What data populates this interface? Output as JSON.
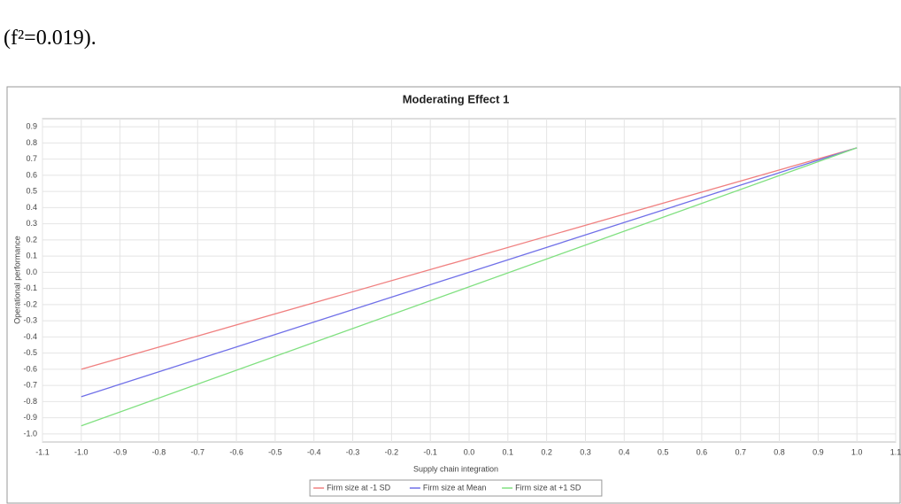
{
  "document": {
    "text": "(f²=0.019)."
  },
  "chart_data": {
    "type": "line",
    "title": "Moderating Effect 1",
    "x_label": "Supply chain integration",
    "y_label": "Operational performance",
    "x": [
      -1,
      1
    ],
    "series": [
      {
        "name": "Firm size at -1 SD",
        "color": "#f08080",
        "values": [
          -0.6,
          0.77
        ]
      },
      {
        "name": "Firm size at Mean",
        "color": "#7070e8",
        "values": [
          -0.77,
          0.77
        ]
      },
      {
        "name": "Firm size at +1 SD",
        "color": "#80e080",
        "values": [
          -0.95,
          0.77
        ]
      }
    ],
    "xlim": [
      -1.1,
      1.1
    ],
    "xticks": [
      -1.1,
      {
        "value": -1,
        "label": "-1.0"
      },
      -0.9,
      -0.8,
      -0.7,
      -0.6,
      -0.5,
      -0.4,
      -0.3,
      -0.2,
      -0.1,
      {
        "value": 0,
        "label": "0.0"
      },
      0.1,
      0.2,
      0.3,
      0.4,
      0.5,
      0.6,
      0.7,
      0.8,
      0.9,
      {
        "value": 1,
        "label": "1.0"
      },
      1.1
    ],
    "ylim": [
      -1.05,
      0.95
    ],
    "yticks": [
      {
        "value": -1,
        "label": "-1.0"
      },
      -0.9,
      -0.8,
      -0.7,
      -0.6,
      -0.5,
      -0.4,
      -0.3,
      -0.2,
      -0.1,
      {
        "value": 0,
        "label": "0.0"
      },
      0.1,
      0.2,
      0.3,
      0.4,
      0.5,
      0.6,
      0.7,
      0.8,
      0.9
    ],
    "grid": true,
    "legend": "bottom"
  }
}
